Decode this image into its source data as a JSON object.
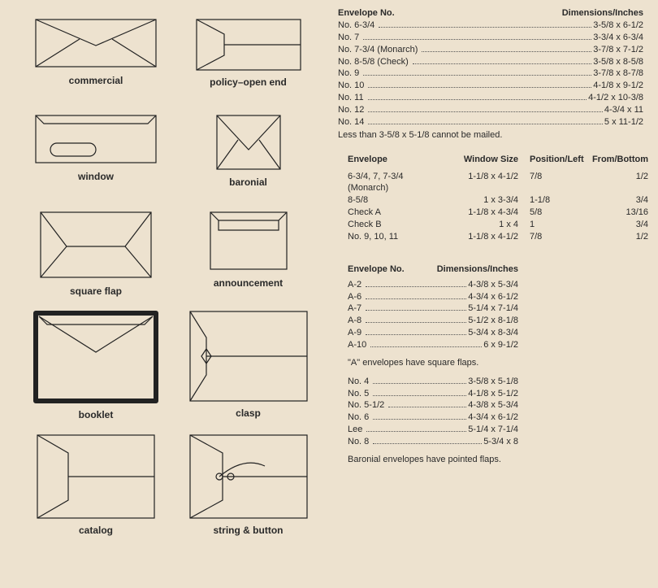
{
  "background": "#ede2cf",
  "stroke_color": "#222222",
  "text_color": "#2a2a2a",
  "diagrams": {
    "r1a": "commercial",
    "r1b": "policy–open end",
    "r2a": "window",
    "r2b": "baronial",
    "r3a": "square flap",
    "r3b": "announcement",
    "r4a": "booklet",
    "r4b": "clasp",
    "r5a": "catalog",
    "r5b": "string & button"
  },
  "table1": {
    "header_left": "Envelope No.",
    "header_right": "Dimensions/Inches",
    "rows": [
      {
        "name": "No. 6-3/4",
        "val": "3-5/8 x 6-1/2"
      },
      {
        "name": "No. 7",
        "val": "3-3/4 x 6-3/4"
      },
      {
        "name": "No. 7-3/4 (Monarch)",
        "val": "3-7/8 x 7-1/2"
      },
      {
        "name": "No. 8-5/8 (Check)",
        "val": "3-5/8 x 8-5/8"
      },
      {
        "name": "No. 9",
        "val": "3-7/8 x 8-7/8"
      },
      {
        "name": "No. 10",
        "val": "4-1/8 x 9-1/2"
      },
      {
        "name": "No. 11",
        "val": "4-1/2 x 10-3/8"
      },
      {
        "name": "No. 12",
        "val": "4-3/4 x 11"
      },
      {
        "name": "No. 14",
        "val": "5 x 11-1/2"
      }
    ],
    "note": "Less than 3-5/8 x 5-1/8 cannot be mailed."
  },
  "table2": {
    "headers": [
      "Envelope",
      "Window Size",
      "Position/Left",
      "From/Bottom"
    ],
    "rows": [
      {
        "env": "6-3/4, 7, 7-3/4 (Monarch)",
        "win": "1-1/8 x 4-1/2",
        "pos": "7/8",
        "bot": "1/2"
      },
      {
        "env": "8-5/8",
        "win": "1 x 3-3/4",
        "pos": "1-1/8",
        "bot": "3/4"
      },
      {
        "env": "Check A",
        "win": "1-1/8 x 4-3/4",
        "pos": "5/8",
        "bot": "13/16"
      },
      {
        "env": "Check B",
        "win": "1 x 4",
        "pos": "1",
        "bot": "3/4"
      },
      {
        "env": "No. 9, 10, 11",
        "win": "1-1/8 x 4-1/2",
        "pos": "7/8",
        "bot": "1/2"
      }
    ]
  },
  "table3": {
    "header_left": "Envelope No.",
    "header_right": "Dimensions/Inches",
    "rowsA": [
      {
        "name": "A-2",
        "val": "4-3/8 x 5-3/4"
      },
      {
        "name": "A-6",
        "val": "4-3/4 x 6-1/2"
      },
      {
        "name": "A-7",
        "val": "5-1/4 x 7-1/4"
      },
      {
        "name": "A-8",
        "val": "5-1/2 x 8-1/8"
      },
      {
        "name": "A-9",
        "val": "5-3/4 x 8-3/4"
      },
      {
        "name": "A-10",
        "val": "6 x 9-1/2"
      }
    ],
    "noteA": "\"A\" envelopes have square flaps.",
    "rowsB": [
      {
        "name": "No. 4",
        "val": "3-5/8 x 5-1/8"
      },
      {
        "name": "No. 5",
        "val": "4-1/8 x 5-1/2"
      },
      {
        "name": "No. 5-1/2",
        "val": "4-3/8 x 5-3/4"
      },
      {
        "name": "No. 6",
        "val": "4-3/4 x 6-1/2"
      },
      {
        "name": "Lee",
        "val": "5-1/4 x 7-1/4"
      },
      {
        "name": "No. 8",
        "val": "5-3/4 x 8"
      }
    ],
    "noteB": "Baronial envelopes have pointed flaps."
  }
}
